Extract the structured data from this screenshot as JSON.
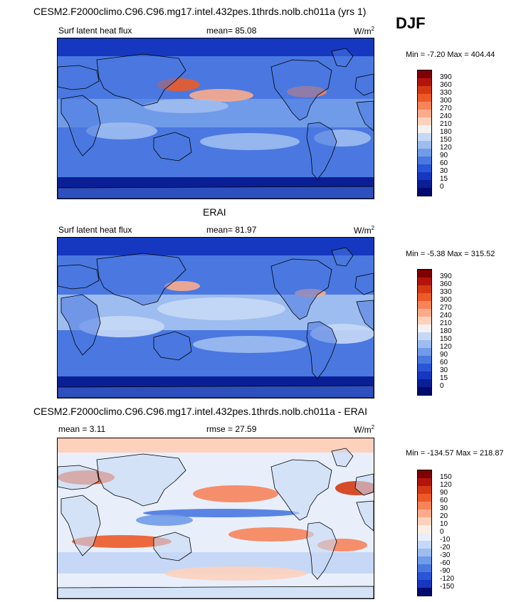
{
  "season": "DJF",
  "panels": [
    {
      "title": "CESM2.F2000climo.C96.C96.mg17.intel.432pes.1thrds.nolb.ch011a (yrs 1)",
      "left": "Surf latent heat flux",
      "center": "mean=  85.08",
      "units": "W/m",
      "units_sup": "2",
      "minmax": "Min =  -7.20 Max = 404.44",
      "levels": [
        "390",
        "360",
        "330",
        "300",
        "270",
        "240",
        "210",
        "180",
        "150",
        "120",
        "90",
        "60",
        "30",
        "15",
        "0"
      ],
      "type": "abs"
    },
    {
      "title": "ERAI",
      "left": "Surf latent heat flux",
      "center": "mean=  81.97",
      "units": "W/m",
      "units_sup": "2",
      "minmax": "Min =  -5.38 Max = 315.52",
      "levels": [
        "390",
        "360",
        "330",
        "300",
        "270",
        "240",
        "210",
        "180",
        "150",
        "120",
        "90",
        "60",
        "30",
        "15",
        "0"
      ],
      "type": "abs"
    },
    {
      "title": "CESM2.F2000climo.C96.C96.mg17.intel.432pes.1thrds.nolb.ch011a - ERAI",
      "left": "mean =  3.11",
      "center": "rmse =  27.59",
      "units": "W/m",
      "units_sup": "2",
      "minmax": "Min = -134.57 Max = 218.87",
      "levels": [
        "150",
        "120",
        "90",
        "60",
        "30",
        "20",
        "10",
        "0",
        "-10",
        "-20",
        "-30",
        "-60",
        "-90",
        "-120",
        "-150"
      ],
      "type": "diff"
    }
  ],
  "colors": {
    "abs_scale": [
      "#7f0000",
      "#b2140c",
      "#d43a12",
      "#ec5a28",
      "#f6835a",
      "#fbab8c",
      "#fdd1bc",
      "#f2f2f2",
      "#c6d8f5",
      "#9dbcf0",
      "#6f9be8",
      "#4a78e0",
      "#2a55d6",
      "#1637c0",
      "#0a1f96",
      "#020a6e"
    ],
    "diff_scale": [
      "#7f0000",
      "#b2140c",
      "#d43a12",
      "#ec5a28",
      "#f6835a",
      "#fbab8c",
      "#fdd1bc",
      "#fdeee4",
      "#e8effb",
      "#c6d8f5",
      "#9dbcf0",
      "#6f9be8",
      "#4a78e0",
      "#2a55d6",
      "#1637c0",
      "#020a6e"
    ]
  }
}
